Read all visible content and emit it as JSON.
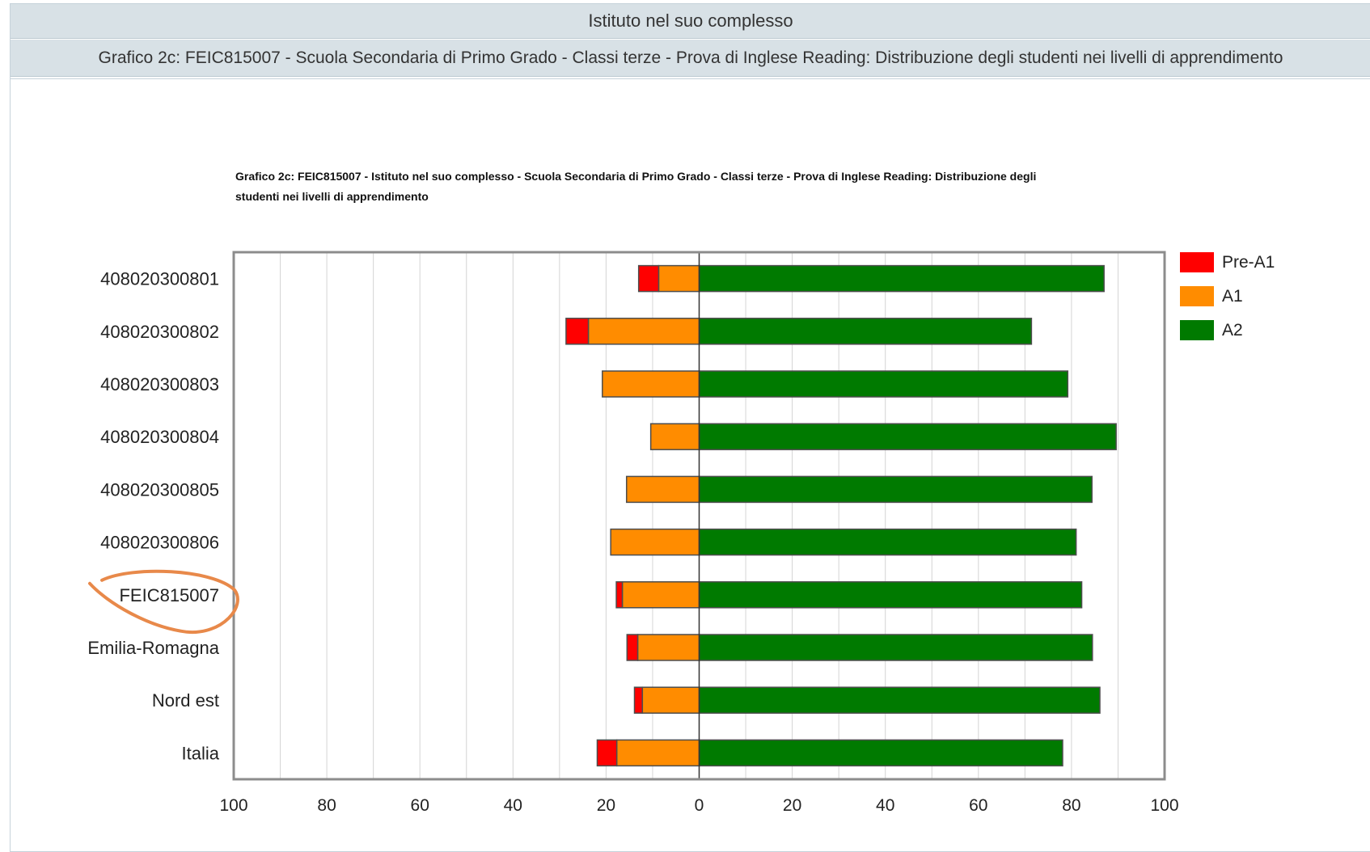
{
  "header": {
    "title": "Istituto nel suo complesso",
    "subtitle": "Grafico 2c: FEIC815007 - Scuola Secondaria di Primo Grado - Classi terze - Prova di Inglese Reading: Distribuzione degli studenti nei livelli di apprendimento"
  },
  "colors": {
    "pre_a1": "#ff0000",
    "a1": "#ff8c00",
    "a2": "#007a00",
    "highlight": "#e8894a"
  },
  "chart_data": {
    "type": "bar",
    "orientation": "horizontal-diverging",
    "title_lines": [
      "Grafico 2c: FEIC815007 - Istituto nel suo complesso - Scuola Secondaria di Primo Grado - Classi terze - Prova di Inglese Reading: Distribuzione degli",
      "studenti nei livelli di apprendimento"
    ],
    "categories": [
      "408020300801",
      "408020300802",
      "408020300803",
      "408020300804",
      "408020300805",
      "408020300806",
      "FEIC815007",
      "Emilia-Romagna",
      "Nord est",
      "Italia"
    ],
    "highlighted_category": "FEIC815007",
    "series": [
      {
        "name": "Pre-A1",
        "side": "left",
        "color": "#ff0000",
        "values": [
          4.3,
          4.8,
          0,
          0,
          0,
          0,
          1.3,
          2.3,
          1.7,
          4.2
        ]
      },
      {
        "name": "A1",
        "side": "left",
        "color": "#ff8c00",
        "values": [
          8.7,
          23.8,
          20.8,
          10.4,
          15.6,
          19.0,
          16.5,
          13.2,
          12.2,
          17.7
        ]
      },
      {
        "name": "A2",
        "side": "right",
        "color": "#007a00",
        "values": [
          87.0,
          71.4,
          79.2,
          89.6,
          84.4,
          81.0,
          82.2,
          84.5,
          86.1,
          78.1
        ]
      }
    ],
    "x_ticks": [
      "100",
      "80",
      "60",
      "40",
      "20",
      "0",
      "20",
      "40",
      "60",
      "80",
      "100"
    ],
    "xlim": [
      -100,
      100
    ],
    "grid": true,
    "legend_position": "top-right"
  }
}
